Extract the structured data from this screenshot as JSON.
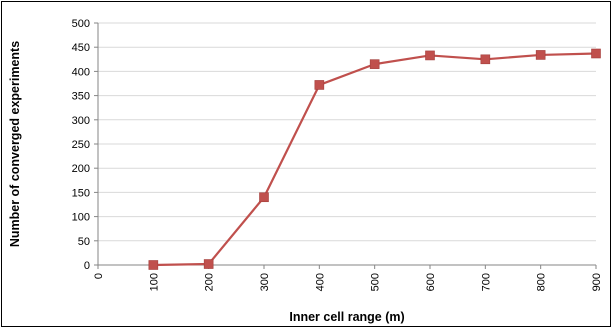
{
  "chart_data": {
    "type": "line",
    "title": "",
    "xlabel": "Inner cell range (m)",
    "ylabel": "Number of converged experiments",
    "x_ticks": [
      "0",
      "100",
      "200",
      "300",
      "400",
      "500",
      "600",
      "700",
      "800",
      "900"
    ],
    "y_ticks": [
      "0",
      "50",
      "100",
      "150",
      "200",
      "250",
      "300",
      "350",
      "400",
      "450",
      "500"
    ],
    "xlim": [
      0,
      900
    ],
    "ylim": [
      0,
      500
    ],
    "grid": "horizontal",
    "legend": "none",
    "series": [
      {
        "color": "#c0504d",
        "marker": "square",
        "x": [
          100,
          200,
          300,
          400,
          500,
          600,
          700,
          800,
          900
        ],
        "y": [
          0,
          2,
          140,
          372,
          415,
          433,
          425,
          434,
          437
        ]
      }
    ]
  }
}
